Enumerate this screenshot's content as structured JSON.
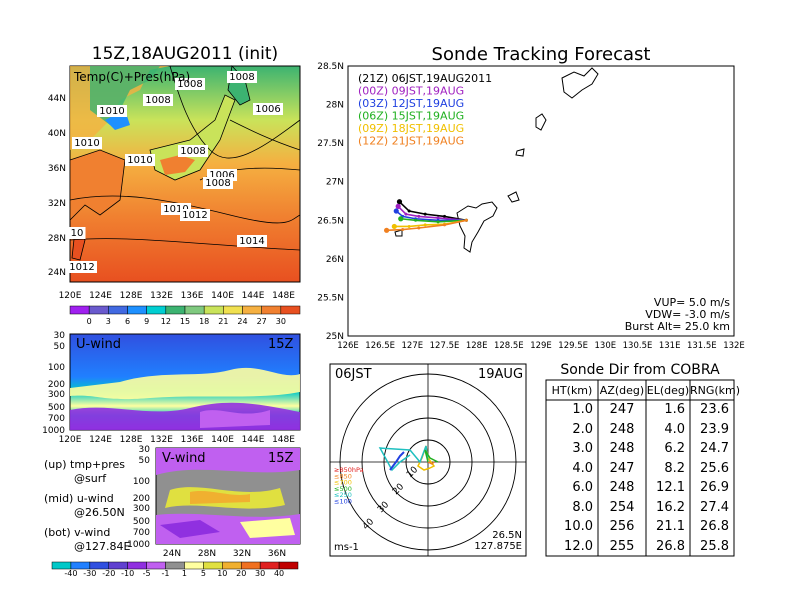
{
  "map_panel": {
    "title": "15Z,18AUG2011 (init)",
    "label": "Temp(C)+Pres(hPa)",
    "lat_ticks": [
      "44N",
      "40N",
      "36N",
      "32N",
      "28N",
      "24N"
    ],
    "lon_ticks": [
      "120E",
      "124E",
      "128E",
      "132E",
      "136E",
      "140E",
      "144E",
      "148E"
    ],
    "isobar_labels": [
      {
        "text": "1008",
        "id": "a"
      },
      {
        "text": "1008",
        "id": "b"
      },
      {
        "text": "1006",
        "id": "c"
      },
      {
        "text": "1008",
        "id": "d"
      },
      {
        "text": "1010",
        "id": "e"
      },
      {
        "text": "1010",
        "id": "f"
      },
      {
        "text": "1010",
        "id": "g"
      },
      {
        "text": "1008",
        "id": "h"
      },
      {
        "text": "1006",
        "id": "i"
      },
      {
        "text": "1008",
        "id": "j"
      },
      {
        "text": "1010",
        "id": "k"
      },
      {
        "text": "1012",
        "id": "l"
      },
      {
        "text": "1014",
        "id": "m"
      },
      {
        "text": "10",
        "id": "n"
      },
      {
        "text": "1012",
        "id": "o"
      }
    ],
    "colorbar_labels": [
      "0",
      "3",
      "6",
      "9",
      "12",
      "15",
      "18",
      "21",
      "24",
      "27",
      "30"
    ],
    "colorbar_colors": [
      "#a020f0",
      "#6a5acd",
      "#4169e1",
      "#1e90ff",
      "#00ced1",
      "#3cb371",
      "#7fc97f",
      "#c9e35a",
      "#f0e050",
      "#f5b041",
      "#f08030",
      "#e85020"
    ]
  },
  "u_panel": {
    "label": "U-wind",
    "time": "15Z",
    "p_ticks": [
      "30",
      "50",
      "100",
      "200",
      "300",
      "500",
      "700",
      "1000"
    ],
    "lon_ticks": [
      "120E",
      "124E",
      "128E",
      "132E",
      "136E",
      "140E",
      "144E",
      "148E"
    ]
  },
  "v_panel": {
    "label": "V-wind",
    "time": "15Z",
    "p_ticks": [
      "30",
      "50",
      "100",
      "200",
      "300",
      "500",
      "700",
      "1000"
    ],
    "lat_ticks": [
      "24N",
      "28N",
      "32N",
      "36N"
    ],
    "legend": [
      "(up) tmp+pres",
      "@surf",
      "(mid) u-wind",
      "@26.50N",
      "(bot) v-wind",
      "@127.84E"
    ],
    "colorbar_labels": [
      "-40",
      "-30",
      "-20",
      "-10",
      "-5",
      "-1",
      "1",
      "5",
      "10",
      "20",
      "30",
      "40"
    ],
    "colorbar_colors": [
      "#00c8c8",
      "#2080ff",
      "#3050e0",
      "#6040d0",
      "#9030e0",
      "#c060f0",
      "#909090",
      "#ffffa0",
      "#e0e040",
      "#f0b030",
      "#f07020",
      "#e02020",
      "#c00000"
    ]
  },
  "track_panel": {
    "title": "Sonde Tracking Forecast",
    "legend": [
      {
        "text": "(21Z)  06JST,19AUG2011",
        "color": "#000000"
      },
      {
        "text": "(00Z)  09JST,19AUG",
        "color": "#a020c0"
      },
      {
        "text": "(03Z)  12JST,19AUG",
        "color": "#2040e0"
      },
      {
        "text": "(06Z)  15JST,19AUG",
        "color": "#20b020"
      },
      {
        "text": "(09Z)  18JST,19AUG",
        "color": "#f0c000"
      },
      {
        "text": "(12Z)  21JST,19AUG",
        "color": "#f08020"
      }
    ],
    "lat_ticks": [
      "28.5N",
      "28N",
      "27.5N",
      "27N",
      "26.5N",
      "26N",
      "25.5N",
      "25N"
    ],
    "lon_ticks": [
      "126E",
      "126.5E",
      "127E",
      "127.5E",
      "128E",
      "128.5E",
      "129E",
      "129.5E",
      "130E",
      "130.5E",
      "131E",
      "131.5E",
      "132E"
    ],
    "params": [
      "VUP=  5.0  m/s",
      "VDW= -3.0  m/s",
      "Burst Alt=  25.0  km"
    ]
  },
  "chart_data": [
    {
      "type": "line",
      "title": "Sonde Tracking Forecast",
      "xlabel": "",
      "ylabel": "",
      "xlim": [
        126.0,
        132.0
      ],
      "ylim": [
        25.0,
        28.5
      ],
      "series": [
        {
          "name": "(21Z)  06JST,19AUG2011",
          "points": [
            [
              127.84,
              26.5
            ],
            [
              127.5,
              26.55
            ],
            [
              127.2,
              26.58
            ],
            [
              126.95,
              26.62
            ],
            [
              126.8,
              26.74
            ]
          ]
        },
        {
          "name": "(00Z)  09JST,19AUG",
          "points": [
            [
              127.84,
              26.5
            ],
            [
              127.4,
              26.53
            ],
            [
              127.1,
              26.55
            ],
            [
              126.9,
              26.58
            ],
            [
              126.78,
              26.68
            ]
          ]
        },
        {
          "name": "(03Z)  12JST,19AUG",
          "points": [
            [
              127.84,
              26.5
            ],
            [
              127.4,
              26.5
            ],
            [
              127.05,
              26.52
            ],
            [
              126.85,
              26.55
            ],
            [
              126.75,
              26.62
            ]
          ]
        },
        {
          "name": "(06Z)  15JST,19AUG",
          "points": [
            [
              127.84,
              26.5
            ],
            [
              127.4,
              26.48
            ],
            [
              127.05,
              26.5
            ],
            [
              126.82,
              26.52
            ]
          ]
        },
        {
          "name": "(09Z)  18JST,19AUG",
          "points": [
            [
              127.84,
              26.5
            ],
            [
              127.5,
              26.45
            ],
            [
              127.2,
              26.44
            ],
            [
              126.95,
              26.42
            ],
            [
              126.72,
              26.42
            ]
          ]
        },
        {
          "name": "(12Z)  21JST,19AUG",
          "points": [
            [
              127.84,
              26.5
            ],
            [
              127.5,
              26.44
            ],
            [
              127.1,
              26.4
            ],
            [
              126.85,
              26.38
            ],
            [
              126.6,
              26.37
            ]
          ]
        }
      ]
    },
    {
      "type": "table",
      "title": "Sonde Dir from COBRA",
      "columns": [
        "HT(km)",
        "AZ(deg)",
        "EL(deg)",
        "RNG(km)"
      ],
      "rows": [
        [
          "1.0",
          "247",
          "1.6",
          "23.6"
        ],
        [
          "2.0",
          "248",
          "4.0",
          "23.9"
        ],
        [
          "3.0",
          "248",
          "6.2",
          "24.7"
        ],
        [
          "4.0",
          "247",
          "8.2",
          "25.6"
        ],
        [
          "6.0",
          "248",
          "12.1",
          "26.9"
        ],
        [
          "8.0",
          "254",
          "16.2",
          "27.4"
        ],
        [
          "10.0",
          "256",
          "21.1",
          "26.8"
        ],
        [
          "12.0",
          "255",
          "26.8",
          "25.8"
        ]
      ]
    }
  ],
  "hodograph_panel": {
    "time_label": "06JST",
    "date_label": "19AUG",
    "ring_labels": [
      "10",
      "20",
      "30",
      "40"
    ],
    "legend": [
      {
        "text": "≥850hPa",
        "color": "#e02020"
      },
      {
        "text": "≤850",
        "color": "#f08020"
      },
      {
        "text": "≤700",
        "color": "#f0c000"
      },
      {
        "text": "≤500",
        "color": "#20b020"
      },
      {
        "text": "≤250",
        "color": "#20c0c0"
      },
      {
        "text": "≤100",
        "color": "#2040e0"
      }
    ],
    "unit": "ms-1",
    "location_lat": "26.5N",
    "location_lon": "127.875E"
  }
}
